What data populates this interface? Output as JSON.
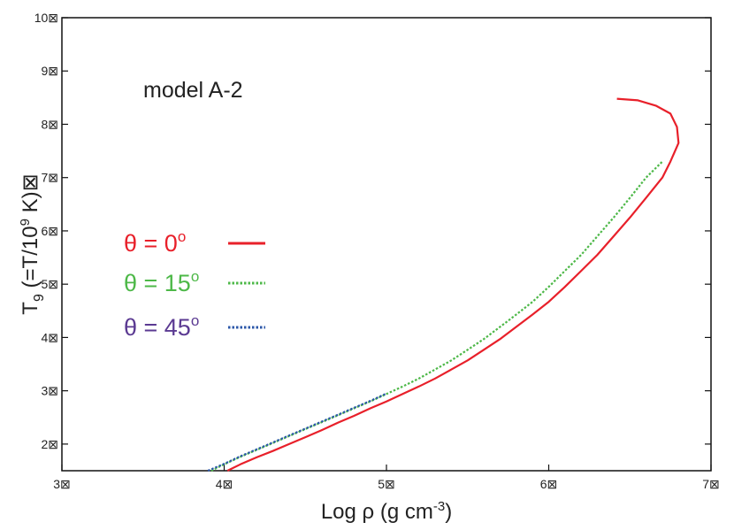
{
  "chart_data": {
    "type": "line",
    "title": "",
    "annotation": "model A-2",
    "xlabel": "Log ρ (g cm",
    "xlabel_sup": "-3",
    "xlabel_close": ")",
    "ylabel_main": "T",
    "ylabel_sub": "9",
    "ylabel_rest": " (=T/10",
    "ylabel_sup": "9",
    "ylabel_end": " K)⊠",
    "xlim": [
      3,
      7
    ],
    "ylim": [
      1.5,
      10
    ],
    "xticks": [
      3,
      4,
      5,
      6,
      7
    ],
    "yticks": [
      2,
      3,
      4,
      5,
      6,
      7,
      8,
      9,
      10
    ],
    "xtick_labels": [
      "3⊠",
      "4⊠",
      "5⊠",
      "6⊠",
      "7⊠"
    ],
    "ytick_labels": [
      "2⊠",
      "3⊠",
      "4⊠",
      "5⊠",
      "6⊠",
      "7⊠",
      "8⊠",
      "9⊠",
      "10⊠"
    ],
    "grid": false,
    "legend_position": "middle-left",
    "series": [
      {
        "name": "θ = 0°",
        "label_main": "θ = 0",
        "label_sup": "o",
        "color": "#e8202a",
        "style": "solid",
        "x": [
          4.02,
          4.1,
          4.2,
          4.3,
          4.4,
          4.5,
          4.6,
          4.7,
          4.8,
          4.9,
          5.0,
          5.1,
          5.2,
          5.3,
          5.4,
          5.5,
          5.6,
          5.7,
          5.8,
          5.9,
          6.0,
          6.1,
          6.2,
          6.3,
          6.4,
          6.5,
          6.6,
          6.7,
          6.75,
          6.8,
          6.79,
          6.75,
          6.66,
          6.55,
          6.42
        ],
        "y": [
          1.5,
          1.62,
          1.75,
          1.87,
          2.0,
          2.13,
          2.26,
          2.4,
          2.53,
          2.67,
          2.8,
          2.94,
          3.08,
          3.23,
          3.4,
          3.57,
          3.77,
          3.97,
          4.2,
          4.43,
          4.67,
          4.95,
          5.25,
          5.55,
          5.9,
          6.25,
          6.62,
          7.0,
          7.3,
          7.65,
          7.95,
          8.2,
          8.35,
          8.45,
          8.48
        ]
      },
      {
        "name": "θ = 15°",
        "label_main": "θ = 15",
        "label_sup": "o",
        "color": "#4db848",
        "style": "dotted",
        "x": [
          3.92,
          4.0,
          4.1,
          4.2,
          4.3,
          4.4,
          4.5,
          4.6,
          4.7,
          4.8,
          4.9,
          5.0,
          5.1,
          5.2,
          5.3,
          5.4,
          5.5,
          5.6,
          5.7,
          5.8,
          5.9,
          6.0,
          6.1,
          6.2,
          6.3,
          6.4,
          6.5,
          6.6,
          6.7
        ],
        "y": [
          1.5,
          1.62,
          1.76,
          1.89,
          2.02,
          2.15,
          2.28,
          2.41,
          2.54,
          2.67,
          2.8,
          2.94,
          3.08,
          3.23,
          3.4,
          3.57,
          3.77,
          3.97,
          4.2,
          4.43,
          4.67,
          4.95,
          5.25,
          5.55,
          5.9,
          6.25,
          6.62,
          7.0,
          7.3
        ]
      },
      {
        "name": "θ = 45°",
        "label_main": "θ = 45",
        "label_sup": "o",
        "color": "#2b57a8",
        "style": "dotted",
        "x": [
          3.9,
          4.0,
          4.1,
          4.2,
          4.3,
          4.4,
          4.5,
          4.6,
          4.7,
          4.8,
          4.9,
          5.0
        ],
        "y": [
          1.5,
          1.63,
          1.77,
          1.9,
          2.03,
          2.16,
          2.29,
          2.42,
          2.55,
          2.68,
          2.81,
          2.95
        ]
      }
    ]
  }
}
